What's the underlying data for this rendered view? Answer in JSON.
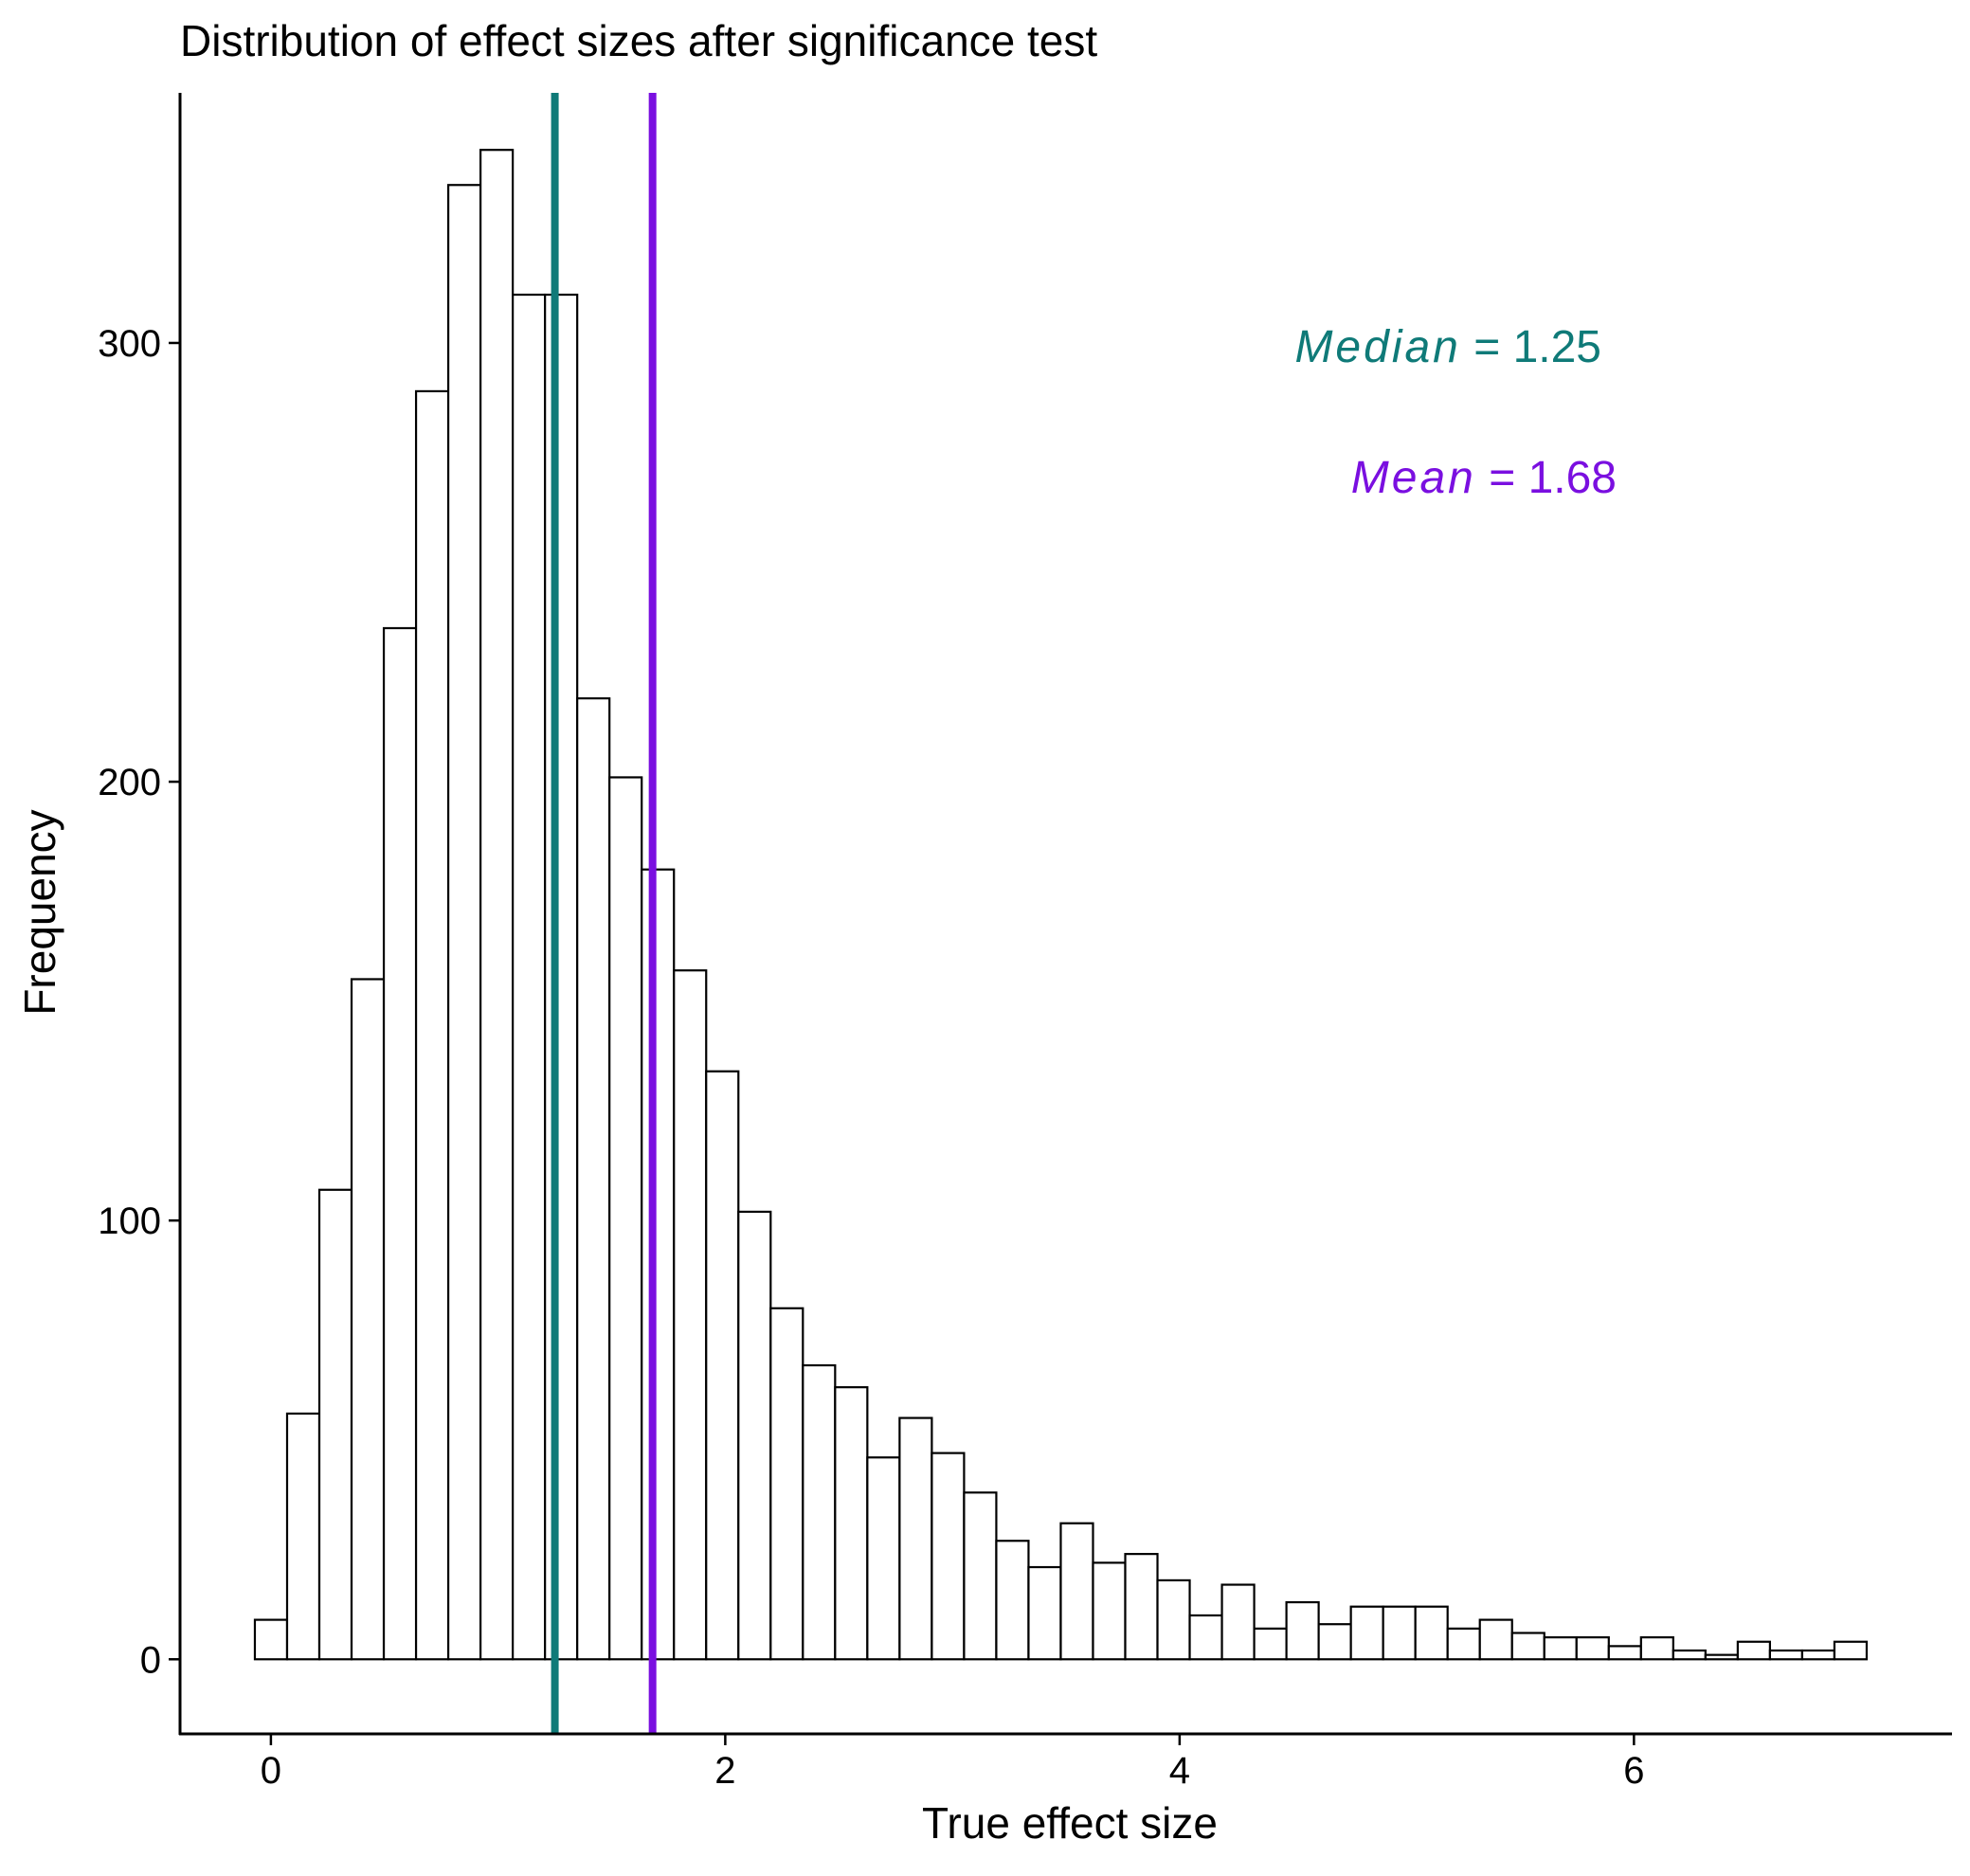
{
  "chart_data": {
    "type": "bar",
    "title": "Distribution of effect sizes after significance test",
    "xlabel": "True effect size",
    "ylabel": "Frequency",
    "xlim": [
      -0.4,
      7.4
    ],
    "ylim": [
      -17,
      357
    ],
    "x_ticks": [
      0,
      2,
      4,
      6
    ],
    "y_ticks": [
      0,
      100,
      200,
      300
    ],
    "x_tick_labels": [
      "0",
      "2",
      "4",
      "6"
    ],
    "y_tick_labels": [
      "0",
      "100",
      "200",
      "300"
    ],
    "bin_width": 0.1419,
    "bin_start": -0.0706,
    "values": [
      9,
      56,
      107,
      155,
      235,
      289,
      336,
      344,
      311,
      311,
      219,
      201,
      180,
      157,
      134,
      102,
      80,
      67,
      62,
      46,
      55,
      47,
      38,
      27,
      21,
      31,
      22,
      24,
      18,
      10,
      17,
      7,
      13,
      8,
      12,
      12,
      12,
      7,
      9,
      6,
      5,
      5,
      3,
      5,
      2,
      1,
      4,
      2,
      2,
      4
    ],
    "grid": false,
    "legend": "none",
    "reference_lines": [
      {
        "name": "Median",
        "value": 1.25,
        "color": "#0f7a78",
        "label_name": "Median",
        "label_rest": " = 1.25"
      },
      {
        "name": "Mean",
        "value": 1.68,
        "color": "#7a0fe0",
        "label_name": "Mean",
        "label_rest": " = 1.68"
      }
    ],
    "colors": {
      "bar_fill": "#ffffff",
      "bar_stroke": "#000000",
      "axis": "#000000"
    }
  }
}
